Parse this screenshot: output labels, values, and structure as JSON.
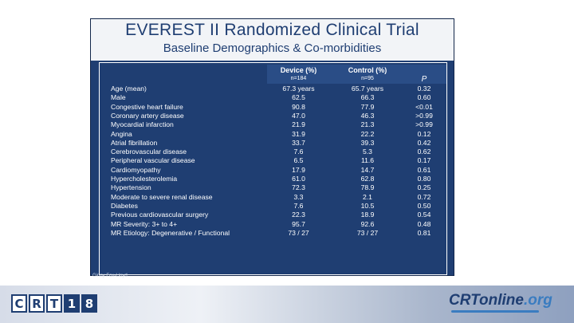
{
  "slide": {
    "title": "EVEREST II Randomized Clinical Trial",
    "subtitle": "Baseline Demographics & Co-morbidities",
    "credit": "Ginny Fox-Lloyd"
  },
  "table": {
    "headers": {
      "device": "Device (%)",
      "device_n": "n=184",
      "control": "Control (%)",
      "control_n": "n=95",
      "p": "P"
    },
    "rows": [
      {
        "label": "Age (mean)",
        "device": "67.3 years",
        "control": "65.7 years",
        "p": "0.32"
      },
      {
        "label": "Male",
        "device": "62.5",
        "control": "66.3",
        "p": "0.60"
      },
      {
        "label": "Congestive heart failure",
        "device": "90.8",
        "control": "77.9",
        "p": "<0.01"
      },
      {
        "label": "Coronary artery disease",
        "device": "47.0",
        "control": "46.3",
        "p": ">0.99"
      },
      {
        "label": "Myocardial infarction",
        "device": "21.9",
        "control": "21.3",
        "p": ">0.99"
      },
      {
        "label": "Angina",
        "device": "31.9",
        "control": "22.2",
        "p": "0.12"
      },
      {
        "label": "Atrial fibrillation",
        "device": "33.7",
        "control": "39.3",
        "p": "0.42"
      },
      {
        "label": "Cerebrovascular disease",
        "device": "7.6",
        "control": "5.3",
        "p": "0.62"
      },
      {
        "label": "Peripheral vascular disease",
        "device": "6.5",
        "control": "11.6",
        "p": "0.17"
      },
      {
        "label": "Cardiomyopathy",
        "device": "17.9",
        "control": "14.7",
        "p": "0.61"
      },
      {
        "label": "Hypercholesterolemia",
        "device": "61.0",
        "control": "62.8",
        "p": "0.80"
      },
      {
        "label": "Hypertension",
        "device": "72.3",
        "control": "78.9",
        "p": "0.25"
      },
      {
        "label": "Moderate to severe renal disease",
        "device": "3.3",
        "control": "2.1",
        "p": "0.72"
      },
      {
        "label": "Diabetes",
        "device": "7.6",
        "control": "10.5",
        "p": "0.50"
      },
      {
        "label": "Previous cardiovascular surgery",
        "device": "22.3",
        "control": "18.9",
        "p": "0.54"
      },
      {
        "label": "MR Severity: 3+ to 4+",
        "device": "95.7",
        "control": "92.6",
        "p": "0.48"
      },
      {
        "label": "MR Etiology: Degenerative / Functional",
        "device": "73 / 27",
        "control": "73 / 27",
        "p": "0.81"
      }
    ]
  },
  "footer": {
    "crt_letters": [
      "C",
      "R",
      "T"
    ],
    "crt_number": [
      "1",
      "8"
    ],
    "online_main": "CRTonline",
    "online_suffix": ".org"
  },
  "colors": {
    "slide_background": "#1f3e72",
    "title_background": "#f2f4f7",
    "text": "#ffffff"
  }
}
